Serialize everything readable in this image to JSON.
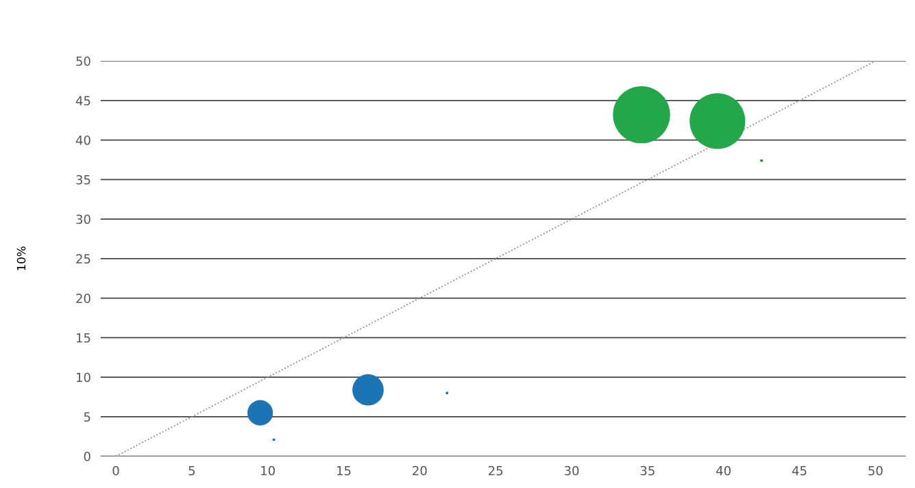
{
  "chart_data": {
    "type": "bubble",
    "ylabel": "10%",
    "xlim": [
      -1,
      52
    ],
    "ylim": [
      0,
      50
    ],
    "xticks": [
      0,
      5,
      10,
      15,
      20,
      25,
      30,
      35,
      40,
      45,
      50
    ],
    "yticks": [
      0,
      5,
      10,
      15,
      20,
      25,
      30,
      35,
      40,
      45,
      50
    ],
    "grid": "y",
    "legend": false,
    "series": [
      {
        "color": "#1b75b5",
        "x": [
          9.5,
          16.6
        ],
        "values": [
          5.5,
          8.4
        ],
        "sizes": [
          0.2,
          0.3
        ]
      },
      {
        "color": "#22a84a",
        "x": [
          34.6,
          39.6
        ],
        "values": [
          43.2,
          42.4
        ],
        "sizes": [
          1,
          0.95
        ]
      },
      {
        "type": "scatter",
        "marker": "square",
        "color": "#0a6fd0",
        "x": [
          10.4,
          21.8
        ],
        "values": [
          2.1,
          8.0
        ]
      },
      {
        "type": "scatter",
        "marker": "square",
        "color": "#0a8a0a",
        "x": [
          42.5
        ],
        "values": [
          37.4
        ]
      },
      {
        "type": "line",
        "line_style": "dotted",
        "color": "#888888",
        "x": [
          0,
          50
        ],
        "values": [
          0,
          50
        ]
      }
    ]
  }
}
